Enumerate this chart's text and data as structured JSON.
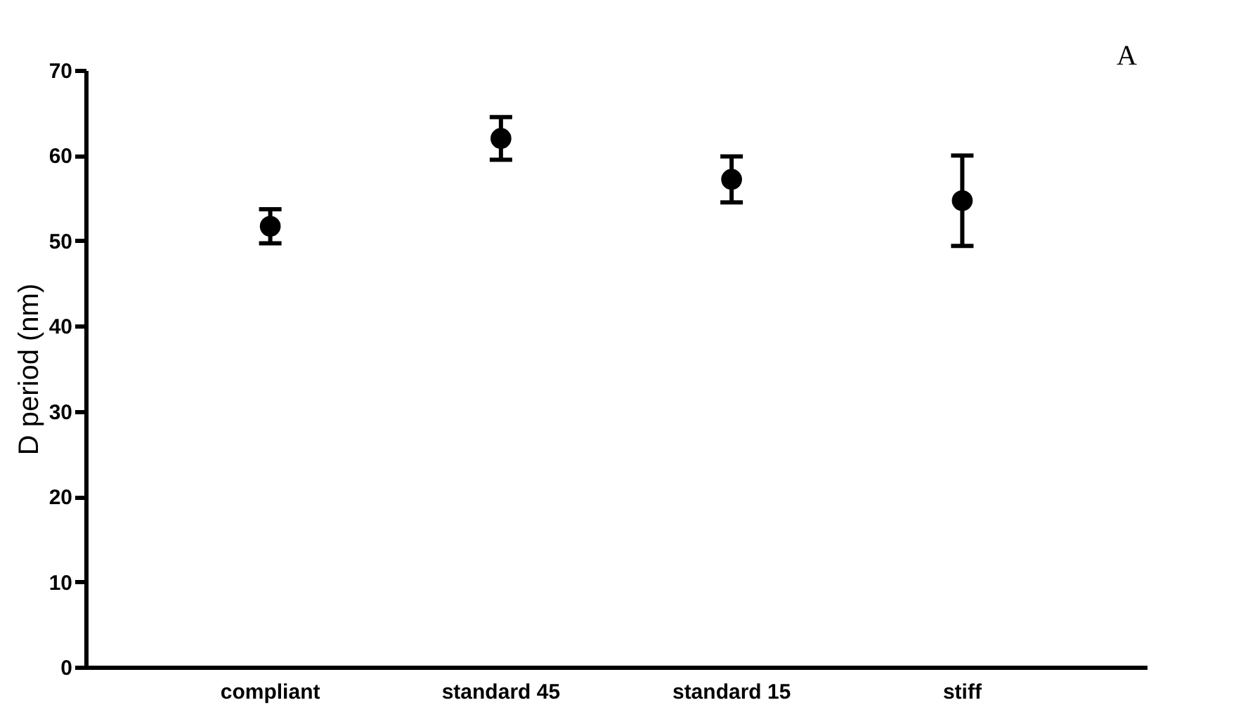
{
  "chart_data": {
    "type": "scatter",
    "ylabel": "D period (nm)",
    "categories": [
      "compliant",
      "standard 45",
      "standard 15",
      "stiff"
    ],
    "values": [
      51.7,
      62.0,
      57.2,
      54.7
    ],
    "errors": [
      2.0,
      2.5,
      2.7,
      5.3
    ],
    "color": "#000000",
    "marker": "circle",
    "ylim": [
      0,
      70
    ],
    "yticks": [
      0,
      10,
      20,
      30,
      40,
      50,
      60,
      70
    ],
    "grid": false,
    "annotations": [
      "A"
    ]
  }
}
